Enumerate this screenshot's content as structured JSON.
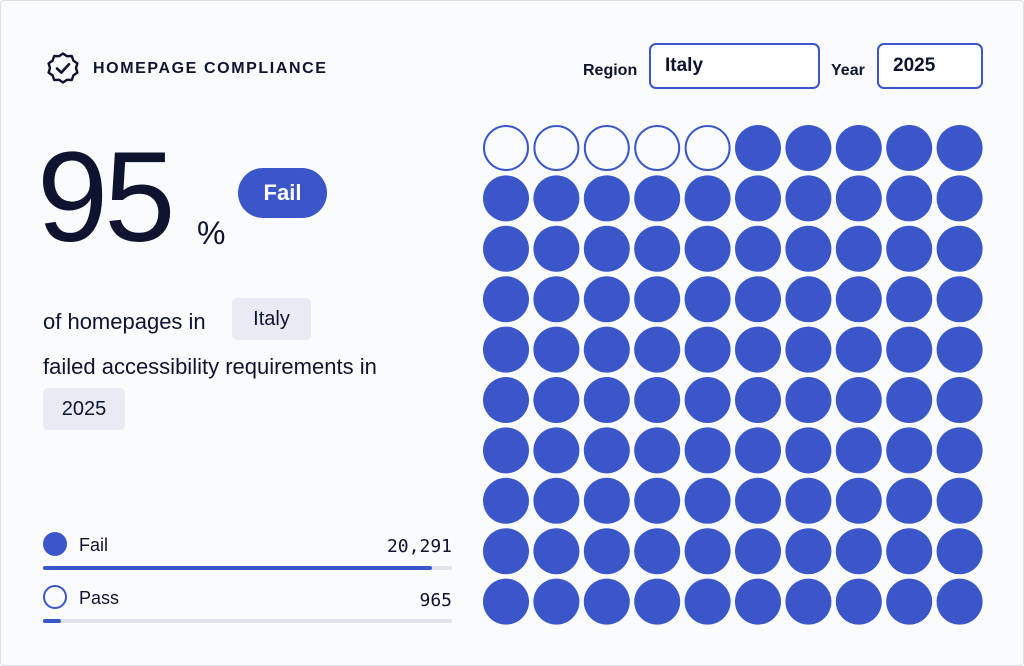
{
  "header": {
    "title": "HOMEPAGE COMPLIANCE",
    "icon": "badge-check-icon"
  },
  "filters": {
    "region_label": "Region",
    "region_value": "Italy",
    "year_label": "Year",
    "year_value": "2025"
  },
  "summary": {
    "percent": "95",
    "percent_sign": "%",
    "verdict": "Fail",
    "line1": "of homepages in",
    "region_chip": "Italy",
    "line2": "failed accessibility requirements in",
    "year_chip": "2025"
  },
  "legend": {
    "fail": {
      "label": "Fail",
      "value": "20,291",
      "fraction": 0.95
    },
    "pass": {
      "label": "Pass",
      "value": "965",
      "fraction": 0.045
    }
  },
  "waffle": {
    "total": 100,
    "pass_count": 5,
    "fail_count": 95
  },
  "colors": {
    "accent": "#3a56c9",
    "text": "#0e1430",
    "chip_bg": "#e8ebf3",
    "track": "#e1e3ea",
    "pass_fill": "#fafbfd"
  }
}
